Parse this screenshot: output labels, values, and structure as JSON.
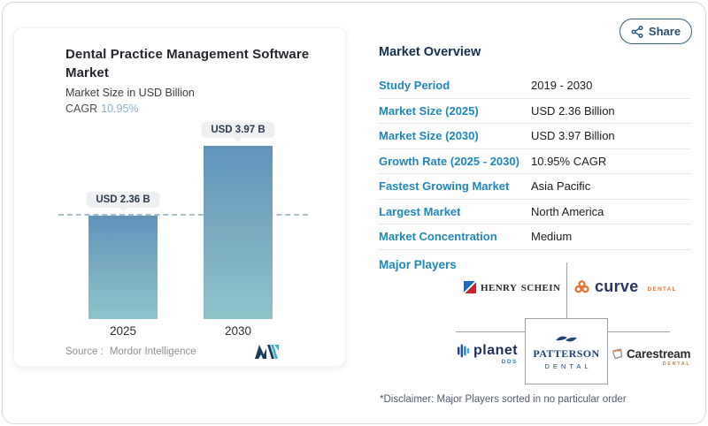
{
  "page": {
    "share_label": "Share",
    "icons": {
      "share": "share-nodes-icon",
      "mordor_logo": "mordor-intelligence-logo",
      "henry_schein": "henry-schein-flag-icon",
      "curve": "curve-trefoil-icon",
      "planet": "planet-dds-bars-icon",
      "patterson": "patterson-waves-icon",
      "carestream": "carestream-tooth-icon"
    }
  },
  "chart_card": {
    "title": "Dental Practice Management Software Market",
    "subtitle": "Market Size in USD Billion",
    "cagr_label": "CAGR",
    "cagr_value": "10.95%",
    "source_label": "Source :",
    "source_value": "Mordor Intelligence"
  },
  "chart_data": {
    "type": "bar",
    "title": "Dental Practice Management Software Market",
    "ylabel": "Market Size in USD Billion",
    "categories": [
      "2025",
      "2030"
    ],
    "values": [
      2.36,
      3.97
    ],
    "value_labels": [
      "USD 2.36 B",
      "USD 3.97 B"
    ],
    "unit": "USD Billion",
    "cagr": "10.95%",
    "ylim": [
      0,
      4.4
    ],
    "grid": false,
    "baseline_dashed_at": 2.36,
    "bar_color_top": "#6093b9",
    "bar_color_bottom": "#8fc3c9",
    "legend": "none"
  },
  "overview": {
    "title": "Market Overview",
    "rows": [
      {
        "label": "Study Period",
        "value": "2019 - 2030"
      },
      {
        "label": "Market Size (2025)",
        "value": "USD 2.36 Billion"
      },
      {
        "label": "Market Size (2030)",
        "value": "USD 3.97 Billion"
      },
      {
        "label": "Growth Rate (2025 - 2030)",
        "value": "10.95% CAGR"
      },
      {
        "label": "Fastest Growing Market",
        "value": "Asia Pacific"
      },
      {
        "label": "Largest Market",
        "value": "North America"
      },
      {
        "label": "Market Concentration",
        "value": "Medium"
      }
    ]
  },
  "major_players": {
    "label": "Major Players",
    "players": [
      {
        "name": "Henry Schein",
        "brand": "Henry Schein",
        "sub": ""
      },
      {
        "name": "Curve Dental",
        "brand": "curve",
        "sub": "DENTAL"
      },
      {
        "name": "Planet DDS",
        "brand": "planet",
        "sub": "DDS"
      },
      {
        "name": "Patterson Dental",
        "brand": "PATTERSON",
        "sub": "DENTAL"
      },
      {
        "name": "Carestream Dental",
        "brand": "Carestream",
        "sub": "DENTAL"
      }
    ],
    "disclaimer": "*Disclaimer: Major Players sorted in no particular order"
  },
  "colors": {
    "accent_label_blue": "#1e87bb",
    "heading_navy": "#13304e",
    "cagr_value_blue": "#8ab0cb",
    "share_outline": "#33617f",
    "badge_bg": "#eef0f2",
    "page_border": "#d5dade",
    "connector_gray": "#9aa0a6"
  }
}
